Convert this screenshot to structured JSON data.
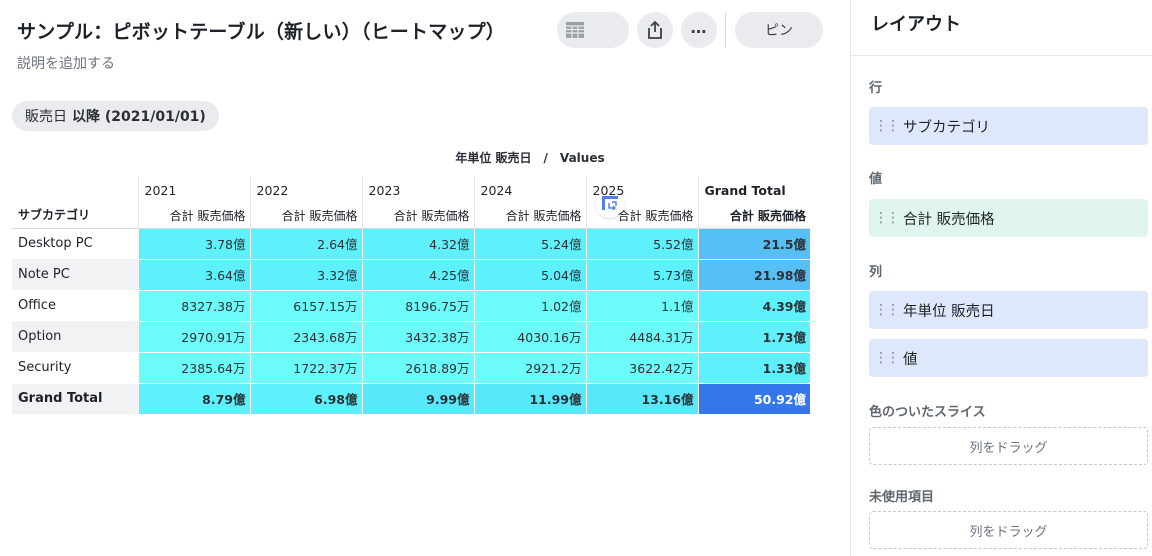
{
  "header": {
    "title": "サンプル：ピボットテーブル（新しい）（ヒートマップ）",
    "description": "説明を追加する",
    "pin_label": "ピン",
    "more_label": "…"
  },
  "filter": {
    "field": "販売日",
    "condition": "以降 (2021/01/01)"
  },
  "pivot": {
    "column_axis_label": "年単位 販売日　/　Values",
    "row_header": "サブカテゴリ",
    "years": [
      "2021",
      "2022",
      "2023",
      "2024",
      "2025"
    ],
    "grand_total_label": "Grand Total",
    "value_header": "合計 販売価格",
    "rows": [
      {
        "label": "Desktop PC",
        "cells": [
          "3.78億",
          "2.64億",
          "4.32億",
          "5.24億",
          "5.52億"
        ],
        "total": "21.5億",
        "alt": false
      },
      {
        "label": "Note PC",
        "cells": [
          "3.64億",
          "3.32億",
          "4.25億",
          "5.04億",
          "5.73億"
        ],
        "total": "21.98億",
        "alt": true
      },
      {
        "label": "Office",
        "cells": [
          "8327.38万",
          "6157.15万",
          "8196.75万",
          "1.02億",
          "1.1億"
        ],
        "total": "4.39億",
        "alt": false
      },
      {
        "label": "Option",
        "cells": [
          "2970.91万",
          "2343.68万",
          "3432.38万",
          "4030.16万",
          "4484.31万"
        ],
        "total": "1.73億",
        "alt": true
      },
      {
        "label": "Security",
        "cells": [
          "2385.64万",
          "1722.37万",
          "2618.89万",
          "2921.2万",
          "3622.42万"
        ],
        "total": "1.33億",
        "alt": false
      }
    ],
    "grand_total_row": {
      "label": "Grand Total",
      "cells": [
        "8.79億",
        "6.98億",
        "9.99億",
        "11.99億",
        "13.16億"
      ],
      "total": "50.92億"
    },
    "heat_colors": {
      "light": "#6bfbf8",
      "mid": "#5ff1fb",
      "cyan": "#59e8fa",
      "sky": "#56c0f6",
      "blue": "#4f7ff0",
      "dark": "#3577eb"
    }
  },
  "panel": {
    "title": "レイアウト",
    "rows_label": "行",
    "rows_item": "サブカテゴリ",
    "values_label": "値",
    "values_item": "合計 販売価格",
    "columns_label": "列",
    "columns_items": [
      "年単位 販売日",
      "値"
    ],
    "color_slice_label": "色のついたスライス",
    "color_slice_drop": "列をドラッグ",
    "unused_label": "未使用項目",
    "unused_drop": "列をドラッグ"
  },
  "icons": [
    "table-view-icon",
    "pivot-view-icon",
    "share-icon",
    "more-icon",
    "grip-icon"
  ]
}
